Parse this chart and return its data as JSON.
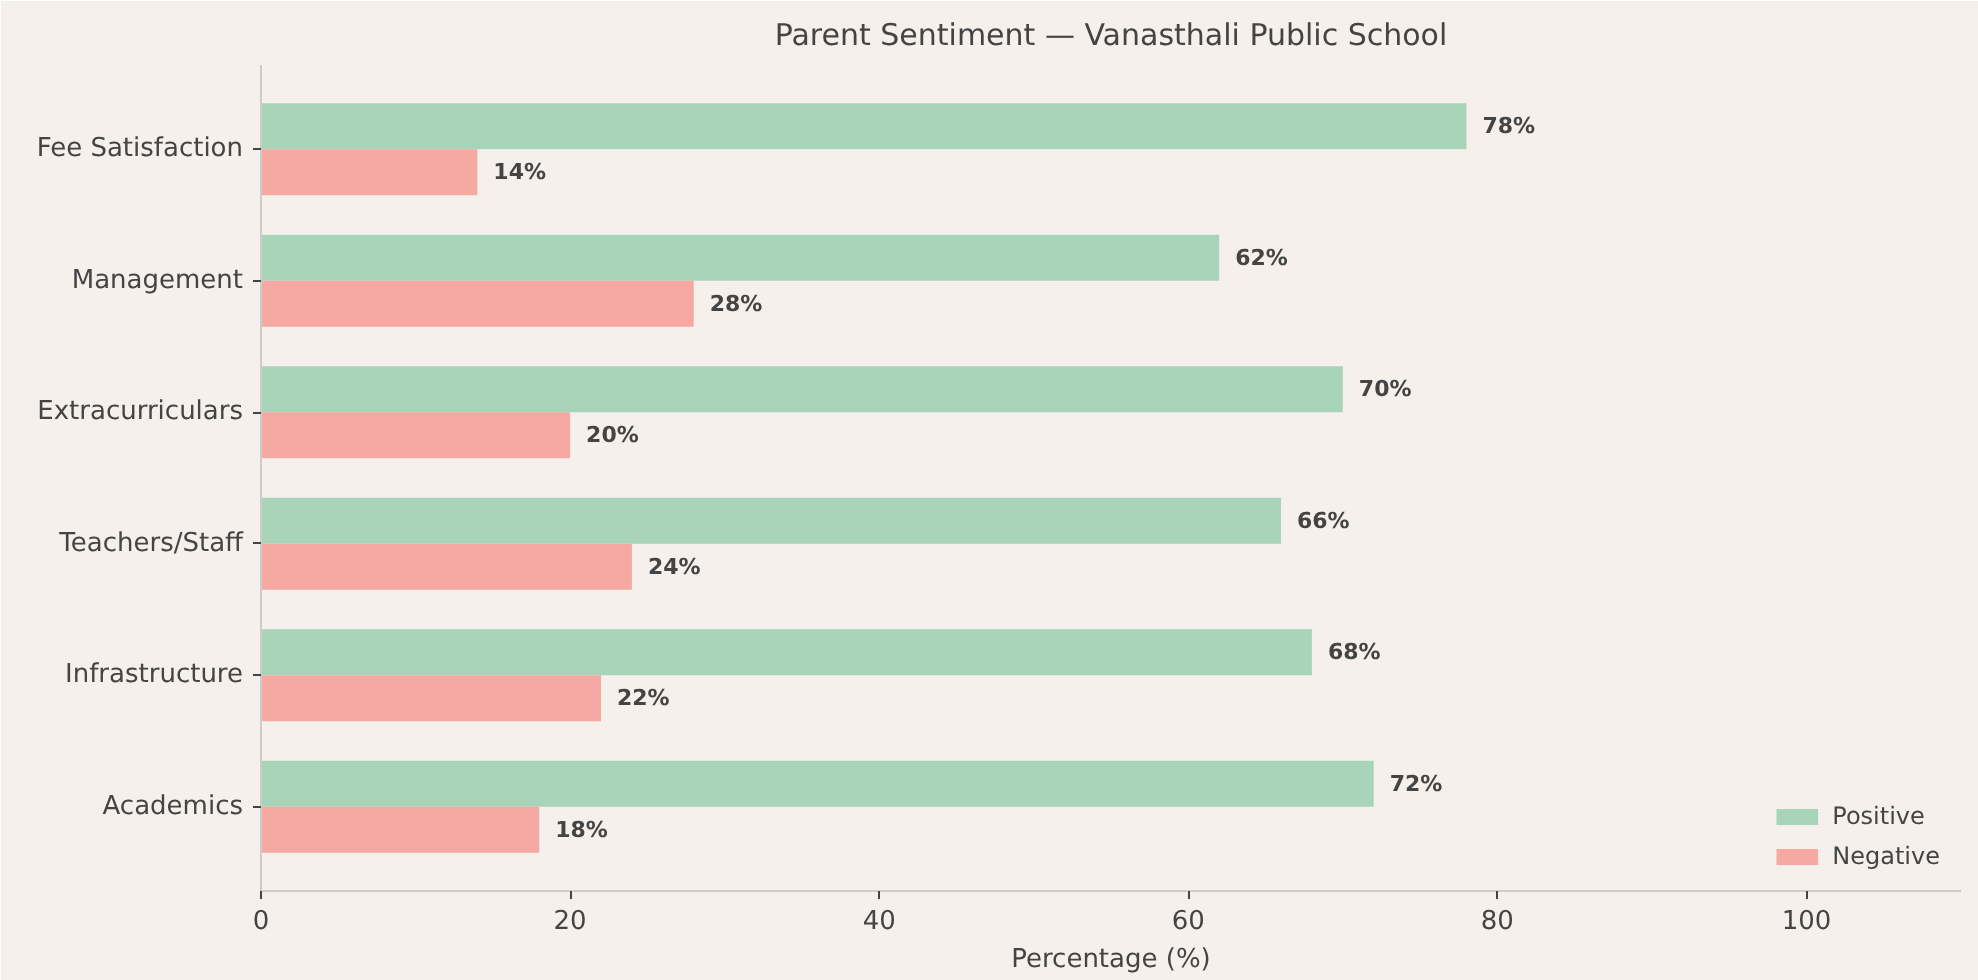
{
  "chart_data": {
    "type": "bar",
    "orientation": "horizontal",
    "title": "Parent Sentiment — Vanasthali Public School",
    "xlabel": "Percentage (%)",
    "categories": [
      "Fee Satisfaction",
      "Management",
      "Extracurriculars",
      "Teachers/Staff",
      "Infrastructure",
      "Academics"
    ],
    "series": [
      {
        "name": "Positive",
        "color": "#a8d5ba",
        "values": [
          78,
          62,
          70,
          66,
          68,
          72
        ],
        "value_labels": [
          "78%",
          "62%",
          "70%",
          "66%",
          "68%",
          "72%"
        ]
      },
      {
        "name": "Negative",
        "color": "#f6a8a3",
        "values": [
          14,
          28,
          20,
          24,
          22,
          18
        ],
        "value_labels": [
          "14%",
          "28%",
          "20%",
          "24%",
          "22%",
          "18%"
        ]
      }
    ],
    "xlim": [
      0,
      110
    ],
    "xticks": [
      0,
      20,
      40,
      60,
      80,
      100
    ],
    "grid": false,
    "legend": "bottom right"
  }
}
